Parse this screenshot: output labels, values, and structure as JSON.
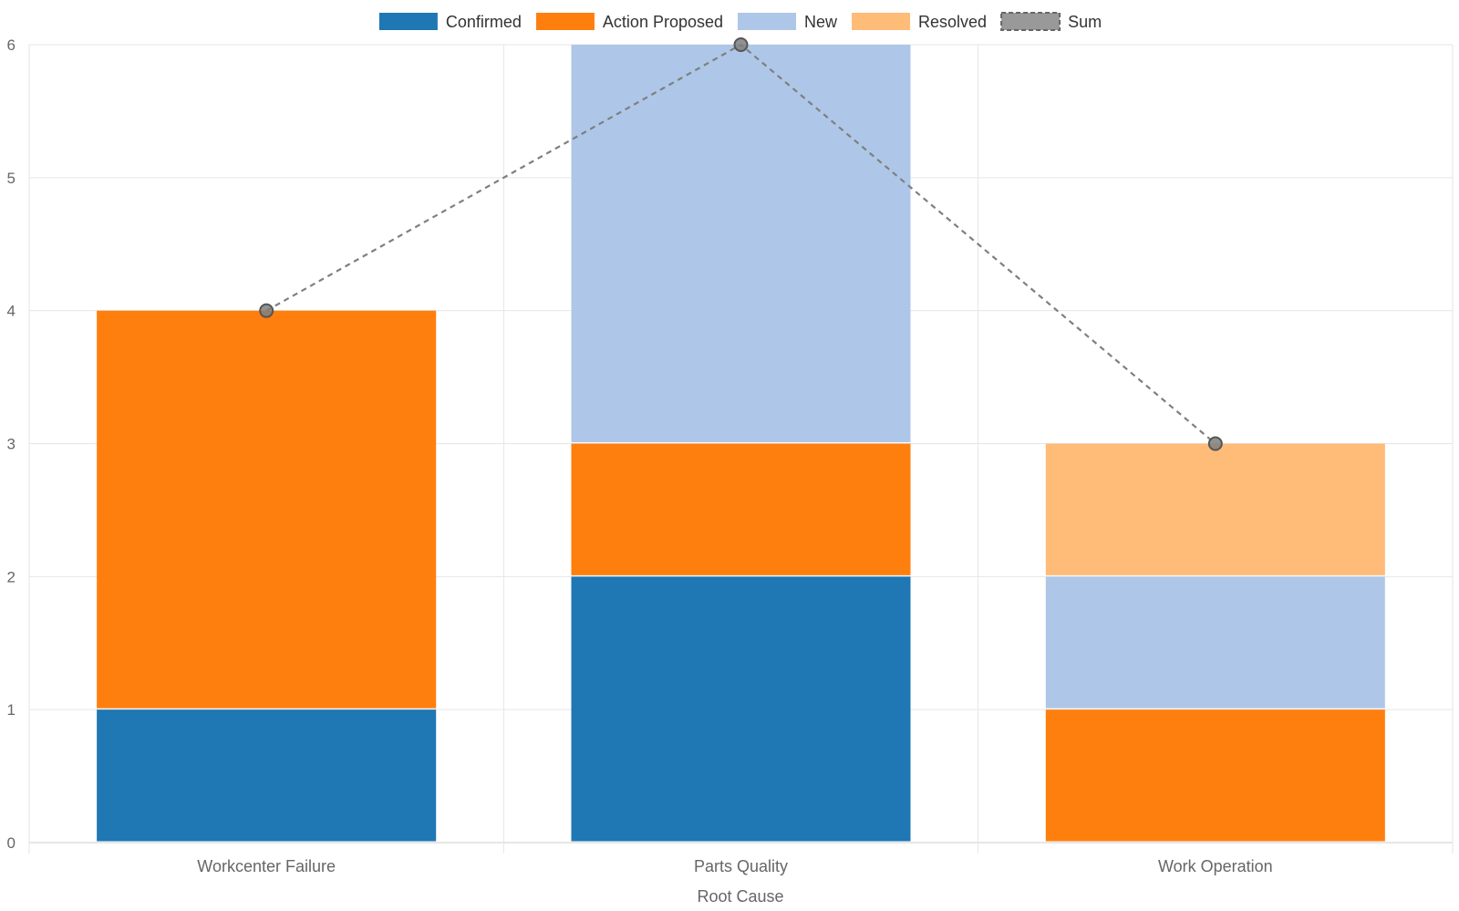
{
  "chart_data": {
    "type": "bar",
    "stacked": true,
    "categories": [
      "Workcenter Failure",
      "Parts Quality",
      "Work Operation"
    ],
    "series": [
      {
        "name": "Confirmed",
        "values": [
          1,
          2,
          0
        ],
        "color": "#1f77b4"
      },
      {
        "name": "Action Proposed",
        "values": [
          3,
          1,
          1
        ],
        "color": "#ff7f0e"
      },
      {
        "name": "New",
        "values": [
          0,
          3,
          1
        ],
        "color": "#aec7e8"
      },
      {
        "name": "Resolved",
        "values": [
          0,
          0,
          1
        ],
        "color": "#ffbb78"
      }
    ],
    "line_series": {
      "name": "Sum",
      "type": "line",
      "style": "dashed",
      "values": [
        4,
        6,
        3
      ],
      "color": "#7f7f7f"
    },
    "title": "",
    "xlabel": "Root Cause",
    "ylabel": "",
    "ylim": [
      0,
      6
    ],
    "yticks": [
      0,
      1,
      2,
      3,
      4,
      5,
      6
    ],
    "grid": true,
    "legend_position": "top-center"
  }
}
